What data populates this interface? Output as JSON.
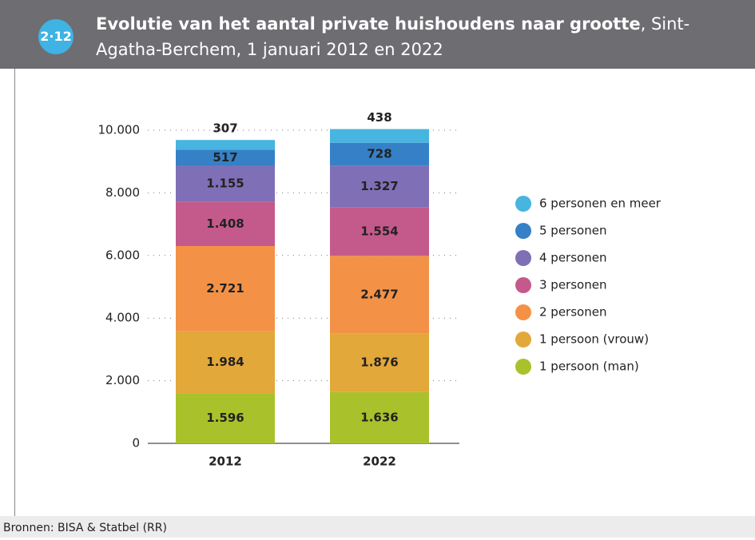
{
  "badge": "2·12",
  "chart_data": {
    "type": "stacked-bar",
    "title": "Evolutie van het aantal private huishoudens naar grootte",
    "subtitle": ", Sint-Agatha-Berchem, 1 januari 2012 en 2022",
    "categories": [
      "2012",
      "2022"
    ],
    "series": [
      {
        "name": "1 persoon (man)",
        "color": "#a9c22b",
        "values": [
          1596,
          1636
        ],
        "value_labels": [
          "1.596",
          "1.636"
        ]
      },
      {
        "name": "1 persoon (vrouw)",
        "color": "#e3a83a",
        "values": [
          1984,
          1876
        ],
        "value_labels": [
          "1.984",
          "1.876"
        ]
      },
      {
        "name": "2 personen",
        "color": "#f39247",
        "values": [
          2721,
          2477
        ],
        "value_labels": [
          "2.721",
          "2.477"
        ]
      },
      {
        "name": "3 personen",
        "color": "#c45a8b",
        "values": [
          1408,
          1554
        ],
        "value_labels": [
          "1.408",
          "1.554"
        ]
      },
      {
        "name": "4 personen",
        "color": "#7f6fb6",
        "values": [
          1155,
          1327
        ],
        "value_labels": [
          "1.155",
          "1.327"
        ]
      },
      {
        "name": "5 personen",
        "color": "#3580c7",
        "values": [
          517,
          728
        ]
      },
      {
        "name": "6 personen en meer",
        "color": "#48b4e0",
        "values": [
          307,
          438
        ]
      }
    ],
    "ylim": [
      0,
      10000
    ],
    "yticks": [
      0,
      {
        "value": 2000,
        "label": "2.000"
      },
      {
        "value": 4000,
        "label": "4.000"
      },
      {
        "value": 6000,
        "label": "6.000"
      },
      {
        "value": 8000,
        "label": "8.000"
      },
      {
        "value": 10000,
        "label": "10.000"
      }
    ],
    "grid": true,
    "legend": "right",
    "source": "Bronnen: BISA & Statbel (RR)"
  }
}
